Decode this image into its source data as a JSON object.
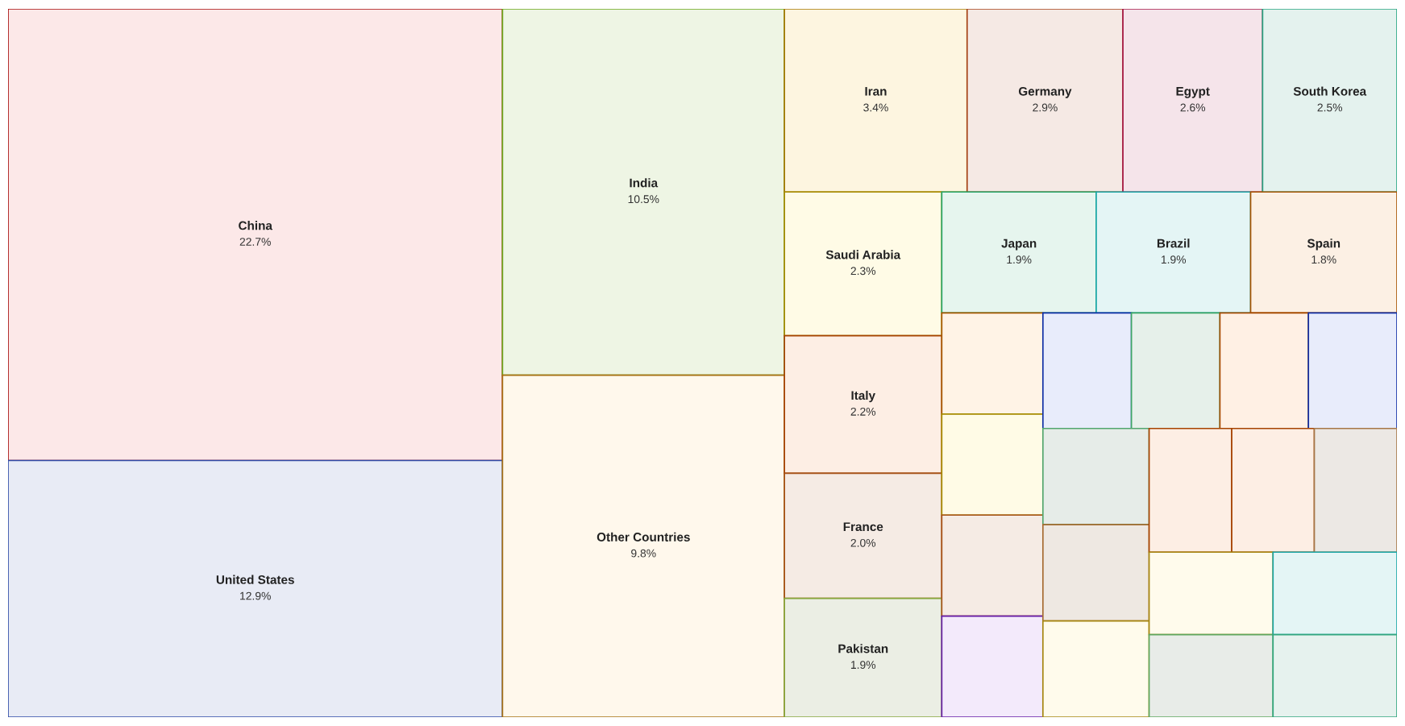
{
  "chart_data": {
    "type": "other",
    "categories": [
      "China",
      "United States",
      "India",
      "Other Countries",
      "Iran",
      "Germany",
      "Egypt",
      "South Korea",
      "Saudi Arabia",
      "Italy",
      "France",
      "Pakistan",
      "Japan",
      "Brazil",
      "Spain",
      null,
      null,
      null,
      null,
      null,
      null,
      null,
      null,
      null,
      null,
      null,
      null,
      null,
      null,
      null,
      null,
      null,
      null
    ],
    "values": [
      22.7,
      12.9,
      10.5,
      9.8,
      3.4,
      2.9,
      2.6,
      2.5,
      2.3,
      2.2,
      2.0,
      1.9,
      1.9,
      1.9,
      1.8,
      null,
      null,
      null,
      null,
      null,
      null,
      null,
      null,
      null,
      null,
      null,
      null,
      null,
      null,
      null,
      null,
      null,
      null
    ],
    "value_labels": [
      "22.7%",
      "12.9%",
      "10.5%",
      "9.8%",
      "3.4%",
      "2.9%",
      "2.6%",
      "2.5%",
      "2.3%",
      "2.2%",
      "2.0%",
      "1.9%",
      "1.9%",
      "1.9%",
      "1.8%",
      null,
      null,
      null,
      null,
      null,
      null,
      null,
      null,
      null,
      null,
      null,
      null,
      null,
      null,
      null,
      null,
      null,
      null
    ],
    "colors": [
      "#fce8e8",
      "#e8ebf5",
      "#eef5e4",
      "#fff8ec",
      "#fdf5e0",
      "#f5e9e4",
      "#f5e4ea",
      "#e4f2ee",
      "#fffbe6",
      "#fdeee4",
      "#f5ebe4",
      "#ebeee4",
      "#e6f5ee",
      "#e4f5f5",
      "#fcf0e4",
      "#fff3e6",
      "#fffbe6",
      "#f5ebe4",
      "#f3eafb",
      "#e8ecfb",
      "#e6f0ea",
      "#fff0e4",
      "#e8ecfb",
      "#e6ece8",
      "#eee8e2",
      "#fffbec",
      "#fdeee4",
      "#fdeee4",
      "#ece8e4",
      "#fffbec",
      "#e8ece8",
      "#e4f5f5",
      "#e6f2ee"
    ]
  }
}
